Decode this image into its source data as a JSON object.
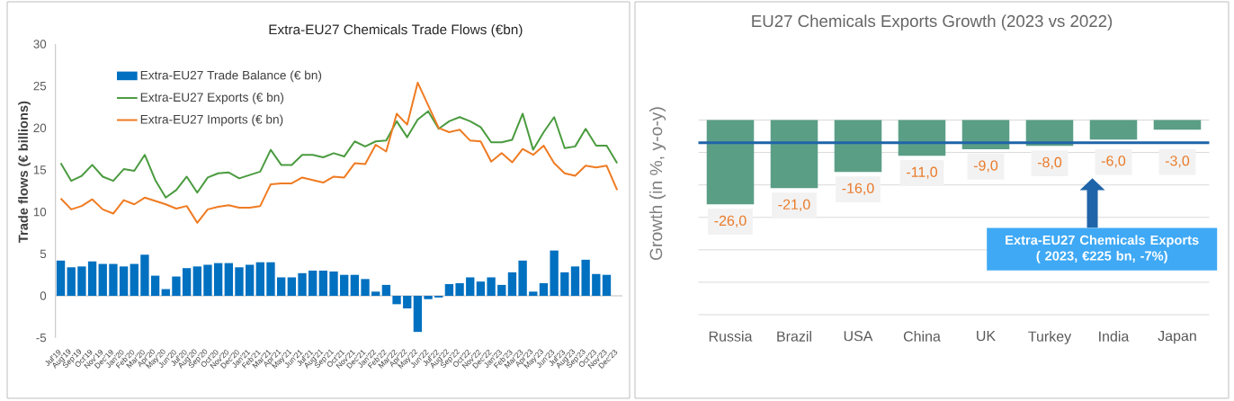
{
  "chart_data": [
    {
      "type": "bar",
      "title": "Extra-EU27 Chemicals Trade Flows (€bn)",
      "ylabel": "Trade flows (€ billions)",
      "categories": [
        "Jul'19",
        "Aug'19",
        "Sep'19",
        "Oct'19",
        "Nov'19",
        "Dec'19",
        "Jan'20",
        "Feb'20",
        "Mar'20",
        "Apr'20",
        "May'20",
        "Jun'20",
        "Jul'20",
        "Aug'20",
        "Sep'20",
        "Oct'20",
        "Nov'20",
        "Dec'20",
        "Jan'21",
        "Feb'21",
        "Mar'21",
        "Apr'21",
        "May'21",
        "Jun'21",
        "Jul'21",
        "Aug'21",
        "Sep'21",
        "Oct'21",
        "Nov'21",
        "Dec'21",
        "Jan'22",
        "Feb'22",
        "Mar'22",
        "Apr'22",
        "May'22",
        "Jun'22",
        "Jul'22",
        "Aug'22",
        "Sep'22",
        "Oct'22",
        "Nov'22",
        "Dec'22",
        "Jan'23",
        "Feb'23",
        "Mar'23",
        "Apr'23",
        "May'23",
        "Jun'23",
        "Jul'23",
        "Aug'23",
        "Sep'23",
        "Oct'23",
        "Nov'23",
        "Dec'23"
      ],
      "series": [
        {
          "name": "Extra-EU27 Trade Balance (€ bn)",
          "type": "bar",
          "color": "#0070c0",
          "values": [
            4.2,
            3.4,
            3.5,
            4.1,
            3.8,
            3.8,
            3.5,
            3.8,
            4.9,
            2.4,
            0.8,
            2.3,
            3.3,
            3.5,
            3.7,
            3.9,
            3.9,
            3.4,
            3.7,
            4.0,
            4.0,
            2.2,
            2.2,
            2.7,
            3.0,
            3.0,
            2.9,
            2.5,
            2.5,
            2.0,
            0.5,
            1.3,
            -1.0,
            -1.5,
            -4.3,
            -0.4,
            -0.2,
            1.4,
            1.5,
            2.2,
            1.7,
            2.2,
            1.3,
            2.8,
            4.2,
            0.5,
            1.5,
            5.4,
            2.8,
            3.5,
            4.3,
            2.6,
            2.5,
            null
          ]
        },
        {
          "name": "Extra-EU27 Exports (€ bn)",
          "type": "line",
          "color": "#4a9b3f",
          "values": [
            15.8,
            13.7,
            14.3,
            15.6,
            14.2,
            13.7,
            15.1,
            14.9,
            16.8,
            13.8,
            11.7,
            12.6,
            14.2,
            12.3,
            14.1,
            14.6,
            14.7,
            14.0,
            14.4,
            14.8,
            17.4,
            15.6,
            15.6,
            16.8,
            16.8,
            16.5,
            17.0,
            16.6,
            18.4,
            17.8,
            18.4,
            18.5,
            20.8,
            18.9,
            21.0,
            22.0,
            19.9,
            20.8,
            21.3,
            20.8,
            20.1,
            18.3,
            18.3,
            18.6,
            21.7,
            17.4,
            19.5,
            21.3,
            17.6,
            17.8,
            19.9,
            17.9,
            17.9,
            15.8
          ]
        },
        {
          "name": "Extra-EU27 Imports (€ bn)",
          "type": "line",
          "color": "#ef7b22",
          "values": [
            11.6,
            10.3,
            10.7,
            11.5,
            10.3,
            9.8,
            11.4,
            10.9,
            11.7,
            11.3,
            10.9,
            10.4,
            10.7,
            8.7,
            10.3,
            10.6,
            10.8,
            10.5,
            10.5,
            10.7,
            13.3,
            13.4,
            13.4,
            14.1,
            13.8,
            13.5,
            14.2,
            14.1,
            15.8,
            15.7,
            18.0,
            17.2,
            21.7,
            20.4,
            25.4,
            22.7,
            20.0,
            19.5,
            19.8,
            18.5,
            18.4,
            16.0,
            17.0,
            15.9,
            17.5,
            16.8,
            17.9,
            15.8,
            14.6,
            14.3,
            15.5,
            15.3,
            15.5,
            12.6
          ]
        }
      ],
      "ylim": [
        -5,
        30
      ],
      "yticks": [
        -5,
        0,
        5,
        10,
        15,
        20,
        25,
        30
      ],
      "legend": "top left"
    },
    {
      "type": "bar",
      "title": "EU27 Chemicals Exports Growth (2023 vs 2022)",
      "ylabel": "Growth (in %, y-o-y)",
      "categories": [
        "Russia",
        "Brazil",
        "USA",
        "China",
        "UK",
        "Turkey",
        "India",
        "Japan"
      ],
      "values": [
        -26,
        -21,
        -16,
        -11,
        -9,
        -8,
        -6,
        -3
      ],
      "color": "#5b9e86",
      "value_labels": [
        "-26,0",
        "-21,0",
        "-16,0",
        "-11,0",
        "-9,0",
        "-8,0",
        "-6,0",
        "-3,0"
      ],
      "ylim": [
        -60,
        0
      ],
      "yticks": [
        {
          "value": -60,
          "label": null
        },
        {
          "value": -50,
          "label": null
        },
        {
          "value": -40,
          "label": null
        },
        {
          "value": -30,
          "label": null
        },
        {
          "value": -20,
          "label": null
        },
        {
          "value": -10,
          "label": null
        },
        {
          "value": 0,
          "label": null
        }
      ],
      "grid": "y",
      "tick_labels": "x",
      "ref_lines": [
        {
          "axis": "y",
          "value": -7,
          "color": "#1f64a8"
        }
      ],
      "annotations": [
        "Extra-EU27 Chemicals Exports ( 2023, €225 bn, -7%)"
      ]
    }
  ]
}
